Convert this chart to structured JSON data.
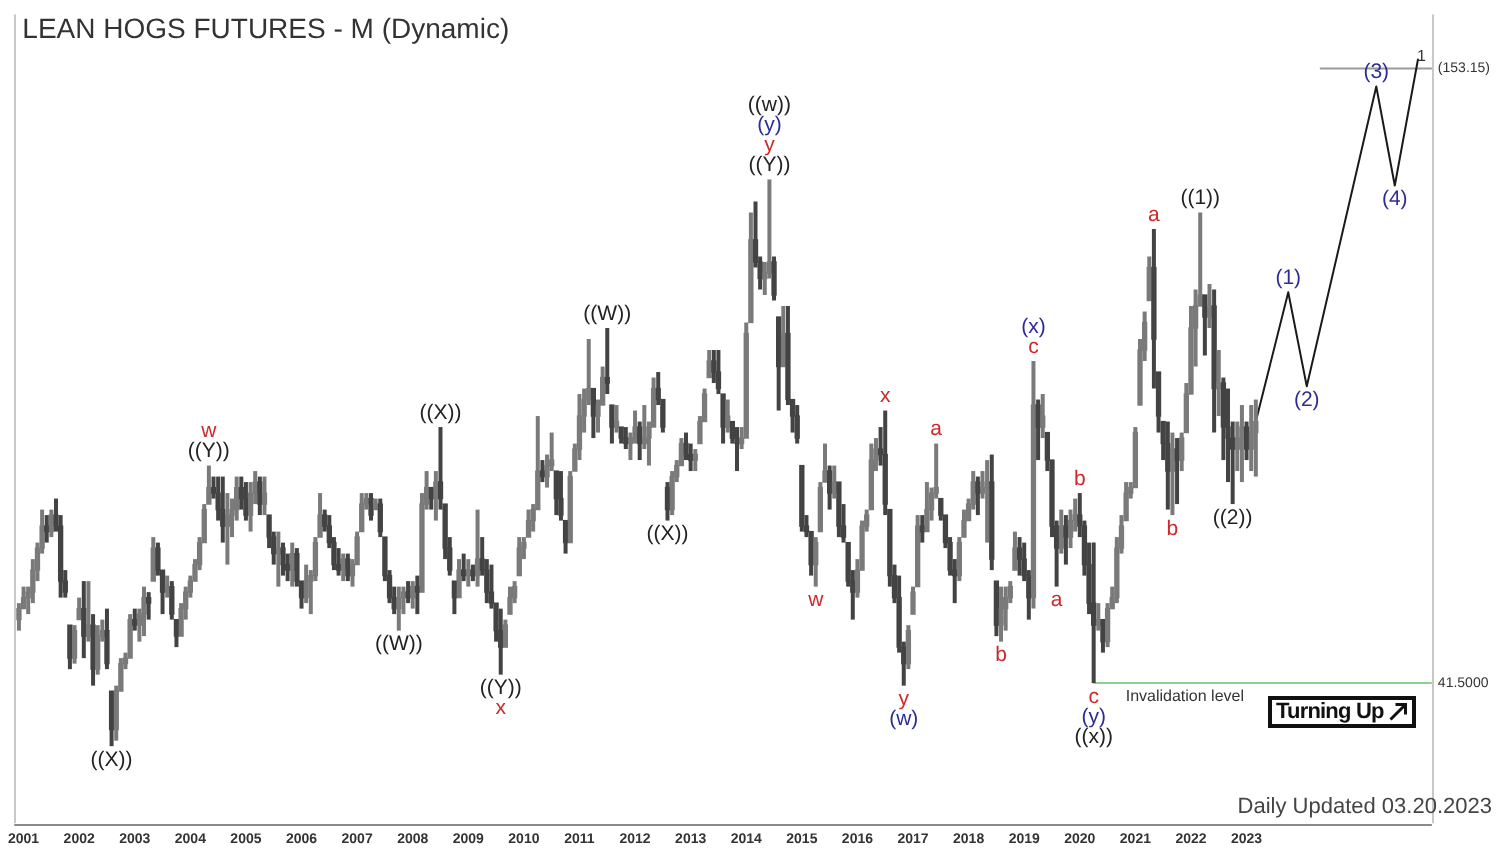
{
  "chart_data": {
    "type": "candlestick",
    "title": "LEAN HOGS FUTURES - M (Dynamic)",
    "x": [
      "2000-12",
      "2001-01",
      "2001-02",
      "2001-03",
      "2001-04",
      "2001-05",
      "2001-06",
      "2001-07",
      "2001-08",
      "2001-09",
      "2001-10",
      "2001-11",
      "2001-12",
      "2002-01",
      "2002-02",
      "2002-03",
      "2002-04",
      "2002-05",
      "2002-06",
      "2002-07",
      "2002-08",
      "2002-09",
      "2002-10",
      "2002-11",
      "2002-12",
      "2003-01",
      "2003-02",
      "2003-03",
      "2003-04",
      "2003-05",
      "2003-06",
      "2003-07",
      "2003-08",
      "2003-09",
      "2003-10",
      "2003-11",
      "2003-12",
      "2004-01",
      "2004-02",
      "2004-03",
      "2004-04",
      "2004-05",
      "2004-06",
      "2004-07",
      "2004-08",
      "2004-09",
      "2004-10",
      "2004-11",
      "2004-12",
      "2005-01",
      "2005-02",
      "2005-03",
      "2005-04",
      "2005-05",
      "2005-06",
      "2005-07",
      "2005-08",
      "2005-09",
      "2005-10",
      "2005-11",
      "2005-12",
      "2006-01",
      "2006-02",
      "2006-03",
      "2006-04",
      "2006-05",
      "2006-06",
      "2006-07",
      "2006-08",
      "2006-09",
      "2006-10",
      "2006-11",
      "2006-12",
      "2007-01",
      "2007-02",
      "2007-03",
      "2007-04",
      "2007-05",
      "2007-06",
      "2007-07",
      "2007-08",
      "2007-09",
      "2007-10",
      "2007-11",
      "2007-12",
      "2008-01",
      "2008-02",
      "2008-03",
      "2008-04",
      "2008-05",
      "2008-06",
      "2008-07",
      "2008-08",
      "2008-09",
      "2008-10",
      "2008-11",
      "2008-12",
      "2009-01",
      "2009-02",
      "2009-03",
      "2009-04",
      "2009-05",
      "2009-06",
      "2009-07",
      "2009-08",
      "2009-09",
      "2009-10",
      "2009-11",
      "2009-12",
      "2010-01",
      "2010-02",
      "2010-03",
      "2010-04",
      "2010-05",
      "2010-06",
      "2010-07",
      "2010-08",
      "2010-09",
      "2010-10",
      "2010-11",
      "2010-12",
      "2011-01",
      "2011-02",
      "2011-03",
      "2011-04",
      "2011-05",
      "2011-06",
      "2011-07",
      "2011-08",
      "2011-09",
      "2011-10",
      "2011-11",
      "2011-12",
      "2012-01",
      "2012-02",
      "2012-03",
      "2012-04",
      "2012-05",
      "2012-06",
      "2012-07",
      "2012-08",
      "2012-09",
      "2012-10",
      "2012-11",
      "2012-12",
      "2013-01",
      "2013-02",
      "2013-03",
      "2013-04",
      "2013-05",
      "2013-06",
      "2013-07",
      "2013-08",
      "2013-09",
      "2013-10",
      "2013-11",
      "2013-12",
      "2014-01",
      "2014-02",
      "2014-03",
      "2014-04",
      "2014-05",
      "2014-06",
      "2014-07",
      "2014-08",
      "2014-09",
      "2014-10",
      "2014-11",
      "2014-12",
      "2015-01",
      "2015-02",
      "2015-03",
      "2015-04",
      "2015-05",
      "2015-06",
      "2015-07",
      "2015-08",
      "2015-09",
      "2015-10",
      "2015-11",
      "2015-12",
      "2016-01",
      "2016-02",
      "2016-03",
      "2016-04",
      "2016-05",
      "2016-06",
      "2016-07",
      "2016-08",
      "2016-09",
      "2016-10",
      "2016-11",
      "2016-12",
      "2017-01",
      "2017-02",
      "2017-03",
      "2017-04",
      "2017-05",
      "2017-06",
      "2017-07",
      "2017-08",
      "2017-09",
      "2017-10",
      "2017-11",
      "2017-12",
      "2018-01",
      "2018-02",
      "2018-03",
      "2018-04",
      "2018-05",
      "2018-06",
      "2018-07",
      "2018-08",
      "2018-09",
      "2018-10",
      "2018-11",
      "2018-12",
      "2019-01",
      "2019-02",
      "2019-03",
      "2019-04",
      "2019-05",
      "2019-06",
      "2019-07",
      "2019-08",
      "2019-09",
      "2019-10",
      "2019-11",
      "2019-12",
      "2020-01",
      "2020-02",
      "2020-03",
      "2020-04",
      "2020-05",
      "2020-06",
      "2020-07",
      "2020-08",
      "2020-09",
      "2020-10",
      "2020-11",
      "2020-12",
      "2021-01",
      "2021-02",
      "2021-03",
      "2021-04",
      "2021-05",
      "2021-06",
      "2021-07",
      "2021-08",
      "2021-09",
      "2021-10",
      "2021-11",
      "2021-12",
      "2022-01",
      "2022-02",
      "2022-03",
      "2022-04",
      "2022-05",
      "2022-06",
      "2022-07",
      "2022-08",
      "2022-09",
      "2022-10",
      "2022-11",
      "2022-12",
      "2023-01",
      "2023-02",
      "2023-03"
    ],
    "ohlc": [
      [
        53,
        56,
        51,
        55
      ],
      [
        55,
        59,
        55,
        57
      ],
      [
        57,
        59,
        54,
        58
      ],
      [
        58,
        64,
        56,
        62
      ],
      [
        62,
        67,
        60,
        66
      ],
      [
        66,
        73,
        65,
        70
      ],
      [
        70,
        72,
        67,
        69
      ],
      [
        69,
        73,
        68,
        72
      ],
      [
        72,
        75,
        69,
        70
      ],
      [
        70,
        72,
        57,
        60
      ],
      [
        60,
        62,
        57,
        58
      ],
      [
        52,
        52,
        44,
        46
      ],
      [
        46,
        52,
        45,
        51
      ],
      [
        53,
        57,
        53,
        55
      ],
      [
        55,
        60,
        46,
        50
      ],
      [
        50,
        60,
        49,
        52
      ],
      [
        52,
        54,
        41,
        44
      ],
      [
        44,
        52,
        43,
        50
      ],
      [
        50,
        53,
        49,
        51
      ],
      [
        51,
        55,
        44,
        45
      ],
      [
        40,
        40,
        30,
        33
      ],
      [
        33,
        41,
        31,
        40
      ],
      [
        40,
        46,
        40,
        45
      ],
      [
        45,
        47,
        44,
        46
      ],
      [
        46,
        54,
        46,
        53
      ],
      [
        53,
        55,
        51,
        52
      ],
      [
        52,
        55,
        49,
        54
      ],
      [
        54,
        59,
        50,
        57
      ],
      [
        57,
        58,
        53,
        56
      ],
      [
        60,
        68,
        60,
        66
      ],
      [
        66,
        67,
        61,
        62
      ],
      [
        62,
        62,
        54,
        58
      ],
      [
        58,
        61,
        57,
        59
      ],
      [
        59,
        60,
        53,
        54
      ],
      [
        53,
        53,
        48,
        50
      ],
      [
        50,
        56,
        50,
        55
      ],
      [
        55,
        59,
        53,
        58
      ],
      [
        58,
        61,
        57,
        60
      ],
      [
        60,
        64,
        60,
        63
      ],
      [
        63,
        68,
        62,
        67
      ],
      [
        67,
        74,
        67,
        73
      ],
      [
        74,
        81,
        74,
        77
      ],
      [
        77,
        79,
        75,
        76
      ],
      [
        76,
        79,
        71,
        73
      ],
      [
        73,
        79,
        67,
        70
      ],
      [
        70,
        76,
        63,
        72
      ],
      [
        72,
        75,
        68,
        73
      ],
      [
        73,
        79,
        71,
        77
      ],
      [
        77,
        79,
        73,
        75
      ],
      [
        75,
        78,
        71,
        72
      ],
      [
        72,
        78,
        69,
        76
      ],
      [
        76,
        80,
        74,
        78
      ],
      [
        78,
        79,
        72,
        74
      ],
      [
        74,
        79,
        72,
        76
      ],
      [
        72,
        72,
        66,
        68
      ],
      [
        68,
        69,
        63,
        65
      ],
      [
        65,
        69,
        59,
        66
      ],
      [
        66,
        67,
        61,
        63
      ],
      [
        63,
        65,
        60,
        62
      ],
      [
        62,
        67,
        59,
        65
      ],
      [
        65,
        66,
        59,
        60
      ],
      [
        60,
        60,
        55,
        57
      ],
      [
        57,
        63,
        56,
        60
      ],
      [
        60,
        62,
        54,
        61
      ],
      [
        61,
        68,
        60,
        67
      ],
      [
        68,
        76,
        68,
        72
      ],
      [
        72,
        73,
        69,
        70
      ],
      [
        70,
        72,
        66,
        67
      ],
      [
        67,
        68,
        62,
        63
      ],
      [
        63,
        66,
        61,
        62
      ],
      [
        62,
        65,
        60,
        64
      ],
      [
        64,
        65,
        60,
        61
      ],
      [
        61,
        64,
        59,
        63
      ],
      [
        63,
        69,
        63,
        68
      ],
      [
        69,
        76,
        69,
        74
      ],
      [
        74,
        76,
        73,
        75
      ],
      [
        75,
        76,
        71,
        72
      ],
      [
        73,
        75,
        73,
        74
      ],
      [
        74,
        75,
        68,
        69
      ],
      [
        68,
        68,
        60,
        61
      ],
      [
        61,
        62,
        56,
        57
      ],
      [
        57,
        59,
        54,
        55
      ],
      [
        55,
        59,
        51,
        57
      ],
      [
        57,
        59,
        54,
        58
      ],
      [
        58,
        60,
        56,
        57
      ],
      [
        57,
        60,
        55,
        59
      ],
      [
        59,
        61,
        54,
        58
      ],
      [
        58,
        76,
        58,
        74
      ],
      [
        74,
        80,
        73,
        77
      ],
      [
        77,
        77,
        73,
        75
      ],
      [
        75,
        80,
        71,
        78
      ],
      [
        78,
        88,
        73,
        75
      ],
      [
        74,
        74,
        64,
        66
      ],
      [
        66,
        68,
        61,
        62
      ],
      [
        60,
        60,
        54,
        57
      ],
      [
        57,
        64,
        57,
        62
      ],
      [
        62,
        65,
        60,
        61
      ],
      [
        61,
        64,
        59,
        62
      ],
      [
        62,
        63,
        60,
        61
      ],
      [
        61,
        73,
        59,
        64
      ],
      [
        64,
        68,
        61,
        62
      ],
      [
        62,
        64,
        56,
        58
      ],
      [
        58,
        63,
        55,
        56
      ],
      [
        56,
        56,
        49,
        51
      ],
      [
        51,
        55,
        43,
        48
      ],
      [
        48,
        53,
        48,
        52
      ],
      [
        54,
        59,
        54,
        57
      ],
      [
        57,
        60,
        56,
        59
      ],
      [
        61,
        68,
        61,
        66
      ],
      [
        66,
        68,
        64,
        67
      ],
      [
        68,
        73,
        68,
        71
      ],
      [
        71,
        74,
        69,
        73
      ],
      [
        73,
        90,
        73,
        80
      ],
      [
        80,
        82,
        78,
        79
      ],
      [
        79,
        83,
        77,
        81
      ],
      [
        81,
        87,
        80,
        82
      ],
      [
        80,
        80,
        72,
        75
      ],
      [
        75,
        80,
        71,
        72
      ],
      [
        71,
        71,
        65,
        67
      ],
      [
        67,
        80,
        67,
        79
      ],
      [
        80,
        85,
        80,
        84
      ],
      [
        84,
        94,
        82,
        90
      ],
      [
        90,
        95,
        87,
        93
      ],
      [
        93,
        104,
        92,
        95
      ],
      [
        95,
        95,
        86,
        90
      ],
      [
        90,
        93,
        87,
        92
      ],
      [
        92,
        99,
        92,
        97
      ],
      [
        97,
        106,
        94,
        96
      ],
      [
        92,
        92,
        85,
        88
      ],
      [
        88,
        92,
        87,
        89
      ],
      [
        88,
        88,
        85,
        86
      ],
      [
        86,
        88,
        84,
        85
      ],
      [
        85,
        87,
        82,
        86
      ],
      [
        86,
        91,
        85,
        88
      ],
      [
        88,
        89,
        82,
        85
      ],
      [
        85,
        92,
        84,
        86
      ],
      [
        86,
        89,
        81,
        88
      ],
      [
        88,
        97,
        88,
        95
      ],
      [
        95,
        98,
        92,
        93
      ],
      [
        93,
        93,
        87,
        88
      ],
      [
        77,
        78,
        71,
        73
      ],
      [
        73,
        80,
        72,
        79
      ],
      [
        79,
        82,
        78,
        81
      ],
      [
        81,
        86,
        81,
        85
      ],
      [
        85,
        87,
        82,
        83
      ],
      [
        83,
        85,
        80,
        82
      ],
      [
        82,
        84,
        80,
        83
      ],
      [
        85,
        90,
        85,
        89
      ],
      [
        89,
        95,
        89,
        94
      ],
      [
        97,
        102,
        97,
        100
      ],
      [
        100,
        102,
        96,
        98
      ],
      [
        98,
        102,
        94,
        95
      ],
      [
        94,
        94,
        85,
        88
      ],
      [
        88,
        93,
        87,
        90
      ],
      [
        89,
        89,
        85,
        86
      ],
      [
        86,
        88,
        80,
        85
      ],
      [
        85,
        88,
        84,
        86
      ],
      [
        86,
        107,
        86,
        105
      ],
      [
        107,
        127,
        107,
        122
      ],
      [
        122,
        129,
        117,
        118
      ],
      [
        118,
        119,
        113,
        115
      ],
      [
        115,
        118,
        112,
        116
      ],
      [
        116,
        133,
        115,
        118
      ],
      [
        118,
        119,
        111,
        112
      ],
      [
        108,
        108,
        91,
        99
      ],
      [
        99,
        110,
        99,
        105
      ],
      [
        105,
        110,
        92,
        93
      ],
      [
        93,
        93,
        87,
        90
      ],
      [
        90,
        92,
        85,
        86
      ],
      [
        81,
        81,
        69,
        70
      ],
      [
        70,
        72,
        68,
        69
      ],
      [
        69,
        69,
        61,
        63
      ],
      [
        63,
        68,
        59,
        67
      ],
      [
        69,
        78,
        69,
        77
      ],
      [
        78,
        85,
        78,
        80
      ],
      [
        80,
        81,
        73,
        76
      ],
      [
        76,
        81,
        75,
        78
      ],
      [
        78,
        78,
        68,
        70
      ],
      [
        70,
        74,
        67,
        68
      ],
      [
        67,
        67,
        59,
        60
      ],
      [
        60,
        62,
        53,
        58
      ],
      [
        58,
        64,
        57,
        62
      ],
      [
        62,
        71,
        62,
        70
      ],
      [
        70,
        73,
        69,
        72
      ],
      [
        73,
        85,
        73,
        82
      ],
      [
        82,
        86,
        80,
        84
      ],
      [
        84,
        88,
        81,
        83
      ],
      [
        83,
        91,
        72,
        74
      ],
      [
        73,
        73,
        59,
        61
      ],
      [
        61,
        63,
        56,
        57
      ],
      [
        57,
        61,
        47,
        48
      ],
      [
        48,
        49,
        41,
        45
      ],
      [
        45,
        52,
        44,
        51
      ],
      [
        54,
        59,
        54,
        58
      ],
      [
        59,
        72,
        59,
        70
      ],
      [
        70,
        72,
        67,
        69
      ],
      [
        69,
        78,
        69,
        73
      ],
      [
        73,
        77,
        71,
        76
      ],
      [
        76,
        85,
        75,
        77
      ],
      [
        75,
        75,
        71,
        72
      ],
      [
        72,
        72,
        66,
        67
      ],
      [
        67,
        68,
        61,
        62
      ],
      [
        62,
        64,
        56,
        61
      ],
      [
        61,
        68,
        60,
        67
      ],
      [
        68,
        73,
        68,
        71
      ],
      [
        71,
        75,
        71,
        74
      ],
      [
        74,
        80,
        73,
        78
      ],
      [
        78,
        79,
        72,
        76
      ],
      [
        76,
        80,
        75,
        77
      ],
      [
        77,
        82,
        67,
        78
      ],
      [
        78,
        83,
        62,
        64
      ],
      [
        60,
        60,
        50,
        52
      ],
      [
        52,
        59,
        49,
        55
      ],
      [
        55,
        59,
        51,
        57
      ],
      [
        57,
        60,
        56,
        59
      ],
      [
        62,
        69,
        62,
        66
      ],
      [
        66,
        68,
        61,
        64
      ],
      [
        64,
        67,
        60,
        61
      ],
      [
        61,
        62,
        53,
        57
      ],
      [
        57,
        100,
        55,
        92
      ],
      [
        92,
        93,
        82,
        88
      ],
      [
        88,
        94,
        86,
        90
      ],
      [
        87,
        87,
        80,
        82
      ],
      [
        82,
        82,
        68,
        70
      ],
      [
        70,
        71,
        59,
        66
      ],
      [
        66,
        73,
        65,
        70
      ],
      [
        70,
        72,
        63,
        68
      ],
      [
        68,
        73,
        66,
        71
      ],
      [
        71,
        75,
        69,
        72
      ],
      [
        72,
        76,
        68,
        70
      ],
      [
        70,
        71,
        61,
        63
      ],
      [
        63,
        67,
        54,
        56
      ],
      [
        56,
        67,
        41.5,
        52
      ],
      [
        52,
        56,
        51,
        53
      ],
      [
        53,
        53,
        47,
        49
      ],
      [
        49,
        56,
        48,
        55
      ],
      [
        55,
        59,
        55,
        57
      ],
      [
        57,
        68,
        56,
        66
      ],
      [
        66,
        72,
        65,
        70
      ],
      [
        71,
        78,
        71,
        76
      ],
      [
        76,
        78,
        75,
        77
      ],
      [
        77,
        88,
        77,
        87
      ],
      [
        92,
        104,
        92,
        102
      ],
      [
        102,
        109,
        100,
        107
      ],
      [
        111,
        119,
        111,
        117
      ],
      [
        117,
        124,
        95,
        104
      ],
      [
        98,
        98,
        87,
        90
      ],
      [
        89,
        89,
        82,
        85
      ],
      [
        85,
        89,
        73,
        80
      ],
      [
        80,
        87,
        72,
        84
      ],
      [
        84,
        86,
        74,
        82
      ],
      [
        82,
        87,
        80,
        86
      ],
      [
        87,
        96,
        87,
        94
      ],
      [
        94,
        110,
        94,
        106
      ],
      [
        106,
        113,
        99,
        110
      ],
      [
        110,
        127,
        110,
        112
      ],
      [
        112,
        112,
        101,
        108
      ],
      [
        108,
        114,
        106,
        110
      ],
      [
        110,
        113,
        87,
        95
      ],
      [
        95,
        102,
        90,
        96
      ],
      [
        96,
        97,
        82,
        88
      ],
      [
        88,
        95,
        78,
        86
      ],
      [
        86,
        89,
        74,
        84
      ],
      [
        84,
        89,
        80,
        86
      ],
      [
        86,
        92,
        78,
        88
      ],
      [
        88,
        89,
        82,
        84
      ],
      [
        84,
        92,
        80,
        87
      ],
      [
        87,
        93,
        79,
        89
      ]
    ],
    "colors": [
      "#7a7a7a",
      "#7a7a7a",
      "#7a7a7a",
      "#7a7a7a",
      "#7a7a7a",
      "#7a7a7a",
      "#434343",
      "#7a7a7a",
      "#434343",
      "#434343",
      "#434343",
      "#434343",
      "#7a7a7a",
      "#7a7a7a",
      "#434343",
      "#7a7a7a",
      "#434343",
      "#7a7a7a",
      "#7a7a7a",
      "#434343",
      "#434343",
      "#7a7a7a",
      "#7a7a7a",
      "#7a7a7a",
      "#7a7a7a",
      "#434343",
      "#7a7a7a",
      "#7a7a7a",
      "#434343",
      "#7a7a7a",
      "#434343",
      "#434343",
      "#7a7a7a",
      "#434343",
      "#434343",
      "#7a7a7a",
      "#7a7a7a",
      "#7a7a7a",
      "#7a7a7a",
      "#7a7a7a",
      "#7a7a7a",
      "#7a7a7a",
      "#434343",
      "#434343",
      "#434343",
      "#7a7a7a",
      "#7a7a7a",
      "#7a7a7a",
      "#434343",
      "#434343",
      "#7a7a7a",
      "#7a7a7a",
      "#434343",
      "#7a7a7a",
      "#434343",
      "#434343",
      "#7a7a7a",
      "#434343",
      "#434343",
      "#7a7a7a",
      "#434343",
      "#434343",
      "#7a7a7a",
      "#7a7a7a",
      "#7a7a7a",
      "#7a7a7a",
      "#434343",
      "#434343",
      "#434343",
      "#434343",
      "#7a7a7a",
      "#434343",
      "#7a7a7a",
      "#7a7a7a",
      "#7a7a7a",
      "#7a7a7a",
      "#434343",
      "#7a7a7a",
      "#434343",
      "#434343",
      "#434343",
      "#434343",
      "#7a7a7a",
      "#7a7a7a",
      "#434343",
      "#7a7a7a",
      "#434343",
      "#7a7a7a",
      "#7a7a7a",
      "#434343",
      "#7a7a7a",
      "#434343",
      "#434343",
      "#434343",
      "#434343",
      "#7a7a7a",
      "#434343",
      "#7a7a7a",
      "#434343",
      "#7a7a7a",
      "#434343",
      "#434343",
      "#434343",
      "#434343",
      "#434343",
      "#7a7a7a",
      "#7a7a7a",
      "#7a7a7a",
      "#7a7a7a",
      "#7a7a7a",
      "#7a7a7a",
      "#7a7a7a",
      "#7a7a7a",
      "#434343",
      "#7a7a7a",
      "#7a7a7a",
      "#434343",
      "#434343",
      "#434343",
      "#7a7a7a",
      "#7a7a7a",
      "#7a7a7a",
      "#7a7a7a",
      "#7a7a7a",
      "#434343",
      "#7a7a7a",
      "#7a7a7a",
      "#434343",
      "#434343",
      "#7a7a7a",
      "#434343",
      "#434343",
      "#7a7a7a",
      "#7a7a7a",
      "#434343",
      "#7a7a7a",
      "#7a7a7a",
      "#7a7a7a",
      "#434343",
      "#434343",
      "#434343",
      "#7a7a7a",
      "#7a7a7a",
      "#7a7a7a",
      "#434343",
      "#434343",
      "#7a7a7a",
      "#7a7a7a",
      "#7a7a7a",
      "#7a7a7a",
      "#434343",
      "#434343",
      "#434343",
      "#7a7a7a",
      "#434343",
      "#434343",
      "#7a7a7a",
      "#7a7a7a",
      "#7a7a7a",
      "#434343",
      "#434343",
      "#7a7a7a",
      "#7a7a7a",
      "#434343",
      "#434343",
      "#7a7a7a",
      "#434343",
      "#434343",
      "#434343",
      "#434343",
      "#434343",
      "#434343",
      "#7a7a7a",
      "#7a7a7a",
      "#7a7a7a",
      "#434343",
      "#7a7a7a",
      "#434343",
      "#434343",
      "#434343",
      "#434343",
      "#7a7a7a",
      "#7a7a7a",
      "#7a7a7a",
      "#7a7a7a",
      "#7a7a7a",
      "#434343",
      "#434343",
      "#434343",
      "#434343",
      "#434343",
      "#434343",
      "#7a7a7a",
      "#7a7a7a",
      "#7a7a7a",
      "#434343",
      "#7a7a7a",
      "#7a7a7a",
      "#7a7a7a",
      "#434343",
      "#434343",
      "#434343",
      "#434343",
      "#7a7a7a",
      "#7a7a7a",
      "#7a7a7a",
      "#7a7a7a",
      "#434343",
      "#7a7a7a",
      "#7a7a7a",
      "#434343",
      "#434343",
      "#7a7a7a",
      "#7a7a7a",
      "#7a7a7a",
      "#7a7a7a",
      "#434343",
      "#434343",
      "#434343",
      "#7a7a7a",
      "#434343",
      "#7a7a7a",
      "#434343",
      "#434343",
      "#434343",
      "#7a7a7a",
      "#434343",
      "#7a7a7a",
      "#7a7a7a",
      "#434343",
      "#434343",
      "#434343",
      "#434343",
      "#7a7a7a",
      "#434343",
      "#7a7a7a",
      "#7a7a7a",
      "#7a7a7a",
      "#7a7a7a",
      "#7a7a7a",
      "#7a7a7a",
      "#7a7a7a",
      "#7a7a7a",
      "#7a7a7a",
      "#7a7a7a",
      "#434343",
      "#434343",
      "#434343",
      "#434343",
      "#7a7a7a",
      "#434343",
      "#7a7a7a",
      "#7a7a7a",
      "#7a7a7a",
      "#7a7a7a",
      "#7a7a7a",
      "#434343",
      "#7a7a7a",
      "#434343",
      "#7a7a7a",
      "#434343",
      "#434343",
      "#434343",
      "#7a7a7a",
      "#7a7a7a",
      "#434343",
      "#7a7a7a",
      "#7a7a7a"
    ],
    "series": [
      {
        "type": "line",
        "color": "#1a1a1a",
        "x": [
          "2023-03",
          "2023-10",
          "2024-02",
          "2025-05",
          "2025-09",
          "2026-02"
        ],
        "values": [
          89,
          112.5,
          95.4,
          149.9,
          131.9,
          154.8
        ]
      },
      {
        "type": "line",
        "name": "Invalidation level",
        "color": "#8fd08f",
        "x": [
          "2020-04",
          "2026-05"
        ],
        "values": [
          41.5,
          41.5
        ]
      },
      {
        "type": "line",
        "name": "1",
        "color": "#9a9a9a",
        "x": [
          "2024-05",
          "2026-05"
        ],
        "values": [
          153.15,
          153.15
        ]
      }
    ],
    "xlim": [
      "2000-11",
      "2026-05"
    ],
    "xticks": [
      "2001",
      "2002",
      "2003",
      "2004",
      "2005",
      "2006",
      "2007",
      "2008",
      "2009",
      "2010",
      "2011",
      "2012",
      "2013",
      "2014",
      "2015",
      "2016",
      "2017",
      "2018",
      "2019",
      "2020",
      "2021",
      "2022",
      "2023"
    ],
    "ylim": [
      16,
      163
    ],
    "yticks": [
      {
        "value": 41.5,
        "label": "41.5000"
      },
      {
        "value": 153.15,
        "label": "(153.15)"
      }
    ],
    "annotations": [
      {
        "text": "((X))",
        "x": "2002-08",
        "y": 30
      },
      {
        "text": "w",
        "x": "2004-05",
        "y": 81
      },
      {
        "text": "((Y))",
        "x": "2004-05",
        "y": 81
      },
      {
        "text": "((W))",
        "x": "2007-10",
        "y": 51
      },
      {
        "text": "((X))",
        "x": "2008-07",
        "y": 88
      },
      {
        "text": "((Y))",
        "x": "2009-08",
        "y": 43
      },
      {
        "text": "x",
        "x": "2009-08",
        "y": 43
      },
      {
        "text": "((W))",
        "x": "2011-07",
        "y": 106
      },
      {
        "text": "((X))",
        "x": "2012-08",
        "y": 71
      },
      {
        "text": "((w))",
        "x": "2014-06",
        "y": 133
      },
      {
        "text": "(y)",
        "x": "2014-06",
        "y": 133
      },
      {
        "text": "y",
        "x": "2014-06",
        "y": 133
      },
      {
        "text": "((Y))",
        "x": "2014-06",
        "y": 133
      },
      {
        "text": "w",
        "x": "2015-04",
        "y": 59
      },
      {
        "text": "x",
        "x": "2016-07",
        "y": 91
      },
      {
        "text": "a",
        "x": "2017-06",
        "y": 85
      },
      {
        "text": "y",
        "x": "2016-11",
        "y": 41
      },
      {
        "text": "(w)",
        "x": "2016-11",
        "y": 41
      },
      {
        "text": "b",
        "x": "2018-08",
        "y": 49
      },
      {
        "text": "(x)",
        "x": "2019-03",
        "y": 100
      },
      {
        "text": "c",
        "x": "2019-03",
        "y": 100
      },
      {
        "text": "a",
        "x": "2019-08",
        "y": 59
      },
      {
        "text": "b",
        "x": "2020-01",
        "y": 76
      },
      {
        "text": "c",
        "x": "2020-04",
        "y": 41.5
      },
      {
        "text": "(y)",
        "x": "2020-04",
        "y": 41.5
      },
      {
        "text": "((x))",
        "x": "2020-04",
        "y": 41.5
      },
      {
        "text": "a",
        "x": "2021-05",
        "y": 124
      },
      {
        "text": "b",
        "x": "2021-09",
        "y": 72
      },
      {
        "text": "((1))",
        "x": "2022-03",
        "y": 127
      },
      {
        "text": "((2))",
        "x": "2022-10",
        "y": 74
      },
      {
        "text": "(1)",
        "x": "2023-10",
        "y": 112.5
      },
      {
        "text": "(2)",
        "x": "2024-02",
        "y": 95.4
      },
      {
        "text": "(3)",
        "x": "2025-05",
        "y": 149.9
      },
      {
        "text": "(4)",
        "x": "2025-09",
        "y": 131.9
      },
      "Daily Updated 03.20.2023",
      "Turning Up"
    ]
  }
}
